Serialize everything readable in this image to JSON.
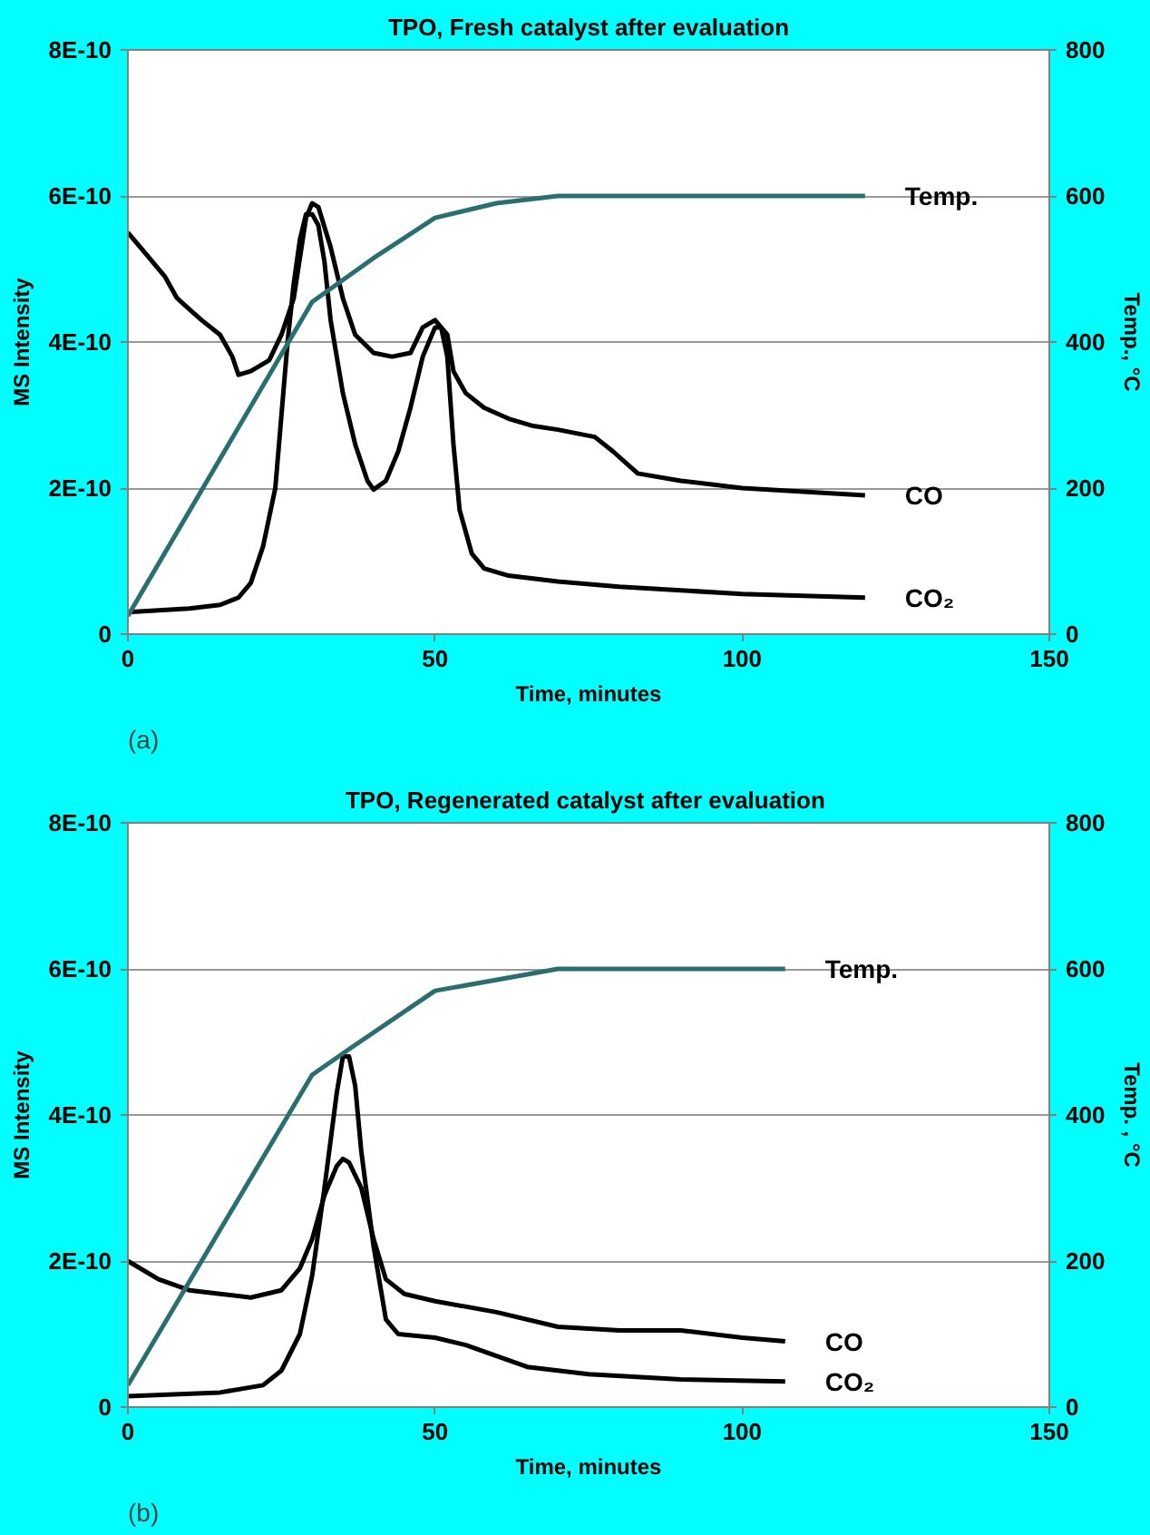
{
  "chart_data": [
    {
      "type": "line",
      "title": "TPO, Fresh catalyst after evaluation",
      "xlabel": "Time, minutes",
      "ylabel": "MS Intensity",
      "y2label": "Temp., °C",
      "annotations": [
        "(a)"
      ],
      "xlim": [
        0,
        150
      ],
      "xticks": [
        0,
        50,
        100,
        150
      ],
      "ylim": [
        0,
        8e-10
      ],
      "yticks": [
        {
          "value": 0,
          "label": "0"
        },
        {
          "value": 2e-10,
          "label": "2E-10"
        },
        {
          "value": 4e-10,
          "label": "4E-10"
        },
        {
          "value": 6e-10,
          "label": "6E-10"
        },
        {
          "value": 8e-10,
          "label": "8E-10"
        }
      ],
      "y2lim": [
        0,
        800
      ],
      "y2ticks": [
        0,
        200,
        400,
        600,
        800
      ],
      "grid": "y",
      "legend": false,
      "series": [
        {
          "name": "CO",
          "color": "#000000",
          "x": [
            0,
            3,
            6,
            8,
            10,
            12,
            15,
            17,
            18,
            20,
            23,
            25,
            27,
            29,
            30,
            31,
            33,
            35,
            37,
            40,
            43,
            46,
            48,
            50,
            52,
            53,
            55,
            58,
            62,
            66,
            70,
            76,
            79,
            83,
            90,
            100,
            110,
            120
          ],
          "values": [
            5.5e-10,
            5.2e-10,
            4.9e-10,
            4.6e-10,
            4.45e-10,
            4.3e-10,
            4.1e-10,
            3.8e-10,
            3.55e-10,
            3.6e-10,
            3.75e-10,
            4.1e-10,
            4.6e-10,
            5.7e-10,
            5.9e-10,
            5.85e-10,
            5.3e-10,
            4.6e-10,
            4.1e-10,
            3.85e-10,
            3.8e-10,
            3.85e-10,
            4.2e-10,
            4.3e-10,
            4.1e-10,
            3.6e-10,
            3.3e-10,
            3.1e-10,
            2.95e-10,
            2.85e-10,
            2.8e-10,
            2.7e-10,
            2.5e-10,
            2.2e-10,
            2.1e-10,
            2e-10,
            1.95e-10,
            1.9e-10
          ]
        },
        {
          "name": "CO₂",
          "color": "#000000",
          "x": [
            0,
            10,
            15,
            18,
            20,
            22,
            24,
            25,
            26,
            27,
            28,
            29,
            30,
            31,
            32,
            33,
            35,
            37,
            39,
            40,
            42,
            44,
            46,
            48,
            50,
            51,
            52,
            53,
            54,
            56,
            58,
            62,
            70,
            80,
            100,
            120
          ],
          "values": [
            3e-11,
            3.5e-11,
            4e-11,
            5e-11,
            7e-11,
            1.2e-10,
            2e-10,
            3e-10,
            4e-10,
            4.8e-10,
            5.4e-10,
            5.75e-10,
            5.75e-10,
            5.6e-10,
            5.1e-10,
            4.3e-10,
            3.3e-10,
            2.6e-10,
            2.1e-10,
            1.98e-10,
            2.1e-10,
            2.5e-10,
            3.1e-10,
            3.8e-10,
            4.2e-10,
            4.2e-10,
            3.8e-10,
            2.6e-10,
            1.7e-10,
            1.1e-10,
            9e-11,
            8e-11,
            7.2e-11,
            6.5e-11,
            5.5e-11,
            5e-11
          ]
        },
        {
          "name": "Temp.",
          "color": "#2a6f6f",
          "axis": "y2",
          "x": [
            0,
            30,
            40,
            50,
            60,
            70,
            120
          ],
          "values": [
            25,
            455,
            515,
            570,
            590,
            600,
            600
          ]
        }
      ]
    },
    {
      "type": "line",
      "title": "TPO,  Regenerated catalyst after evaluation",
      "xlabel": "Time, minutes",
      "ylabel": "MS Intensity",
      "y2label": "Temp. , °C",
      "annotations": [
        "(b)"
      ],
      "xlim": [
        0,
        150
      ],
      "xticks": [
        0,
        50,
        100,
        150
      ],
      "ylim": [
        0,
        8e-10
      ],
      "yticks": [
        {
          "value": 0,
          "label": "0"
        },
        {
          "value": 2e-10,
          "label": "2E-10"
        },
        {
          "value": 4e-10,
          "label": "4E-10"
        },
        {
          "value": 6e-10,
          "label": "6E-10"
        },
        {
          "value": 8e-10,
          "label": "8E-10"
        }
      ],
      "y2lim": [
        0,
        800
      ],
      "y2ticks": [
        0,
        200,
        400,
        600,
        800
      ],
      "grid": "y",
      "legend": false,
      "series": [
        {
          "name": "CO",
          "color": "#000000",
          "x": [
            0,
            5,
            10,
            15,
            20,
            25,
            28,
            30,
            32,
            34,
            35,
            36,
            38,
            40,
            42,
            45,
            50,
            60,
            70,
            80,
            90,
            100,
            107
          ],
          "values": [
            2e-10,
            1.75e-10,
            1.6e-10,
            1.55e-10,
            1.5e-10,
            1.6e-10,
            1.9e-10,
            2.3e-10,
            2.9e-10,
            3.3e-10,
            3.4e-10,
            3.35e-10,
            3e-10,
            2.3e-10,
            1.75e-10,
            1.55e-10,
            1.45e-10,
            1.3e-10,
            1.1e-10,
            1.05e-10,
            1.05e-10,
            9.5e-11,
            9e-11
          ]
        },
        {
          "name": "CO₂",
          "color": "#000000",
          "x": [
            0,
            15,
            22,
            25,
            28,
            30,
            32,
            34,
            35,
            36,
            37,
            38,
            40,
            42,
            44,
            50,
            55,
            60,
            65,
            75,
            90,
            107
          ],
          "values": [
            1.5e-11,
            2e-11,
            3e-11,
            5e-11,
            1e-10,
            1.8e-10,
            3e-10,
            4.3e-10,
            4.8e-10,
            4.8e-10,
            4.4e-10,
            3.5e-10,
            2.2e-10,
            1.2e-10,
            1e-10,
            9.5e-11,
            8.5e-11,
            7e-11,
            5.5e-11,
            4.5e-11,
            3.8e-11,
            3.5e-11
          ]
        },
        {
          "name": "Temp.",
          "color": "#2a6f6f",
          "axis": "y2",
          "x": [
            0,
            30,
            36,
            50,
            70,
            107
          ],
          "values": [
            30,
            455,
            490,
            570,
            600,
            600
          ]
        }
      ]
    }
  ]
}
